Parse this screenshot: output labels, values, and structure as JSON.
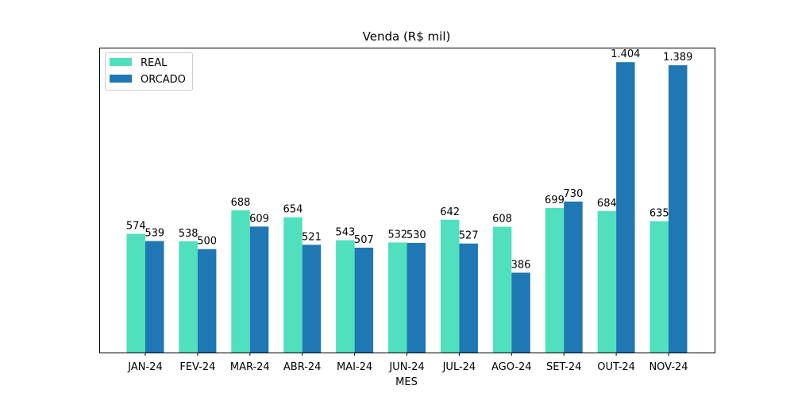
{
  "chart_data": {
    "type": "bar",
    "title": "Venda (R$ mil)",
    "xlabel": "MES",
    "ylabel": "",
    "categories": [
      "JAN-24",
      "FEV-24",
      "MAR-24",
      "ABR-24",
      "MAI-24",
      "JUN-24",
      "JUL-24",
      "AGO-24",
      "SET-24",
      "OUT-24",
      "NOV-24"
    ],
    "series": [
      {
        "name": "REAL",
        "color": "#50e0bd",
        "values": [
          574,
          538,
          688,
          654,
          543,
          532,
          642,
          608,
          699,
          684,
          635
        ],
        "labels": [
          "574",
          "538",
          "688",
          "654",
          "543",
          "532",
          "642",
          "608",
          "699",
          "684",
          "635"
        ]
      },
      {
        "name": "ORCADO",
        "color": "#1f77b4",
        "values": [
          539,
          500,
          609,
          521,
          507,
          530,
          527,
          386,
          730,
          1404,
          1389
        ],
        "labels": [
          "539",
          "500",
          "609",
          "521",
          "507",
          "530",
          "527",
          "386",
          "730",
          "1.404",
          "1.389"
        ]
      }
    ],
    "ylim": [
      0,
      1474
    ],
    "y_ticks_visible": false,
    "grid": false,
    "legend": "top-left"
  }
}
